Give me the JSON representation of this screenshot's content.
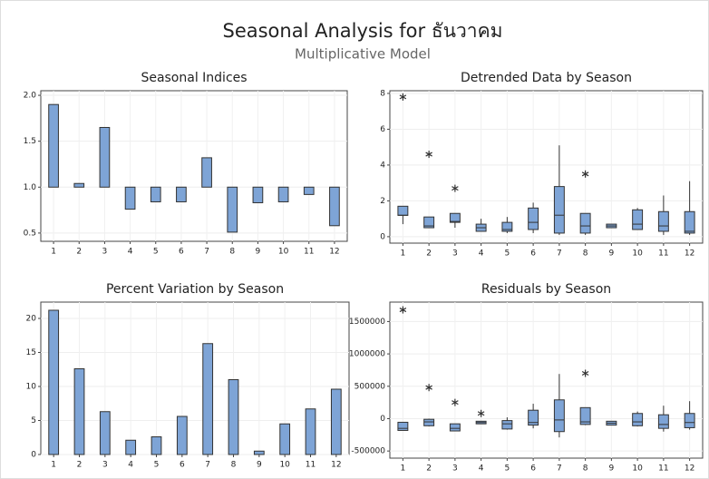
{
  "title": "Seasonal Analysis for ธันวาคม",
  "subtitle": "Multiplicative Model",
  "chart_data": [
    {
      "type": "bar",
      "title": "Seasonal Indices",
      "categories": [
        "1",
        "2",
        "3",
        "4",
        "5",
        "6",
        "7",
        "8",
        "9",
        "10",
        "11",
        "12"
      ],
      "values": [
        1.9,
        1.04,
        1.65,
        0.76,
        0.84,
        0.84,
        1.32,
        0.51,
        0.83,
        0.84,
        0.92,
        0.58
      ],
      "baseline": 1,
      "color": "#7ea4d6",
      "ylim": [
        0.41,
        2.05
      ],
      "yticks": [
        0.5,
        {
          "value": 1.0,
          "label": "1.0"
        },
        1.5,
        {
          "value": 2.0,
          "label": "2.0"
        }
      ],
      "grid": true
    },
    {
      "type": "box",
      "title": "Detrended Data by Season",
      "categories": [
        "1",
        "2",
        "3",
        "4",
        "5",
        "6",
        "7",
        "8",
        "9",
        "10",
        "11",
        "12"
      ],
      "boxes": [
        {
          "low": 0.7,
          "q1": 1.19,
          "median": 1.2,
          "q3": 1.7,
          "high": 1.7,
          "outliers": [
            7.8
          ]
        },
        {
          "low": 0.5,
          "q1": 0.5,
          "median": 0.6,
          "q3": 1.1,
          "high": 1.1,
          "outliers": [
            4.6
          ]
        },
        {
          "low": 0.5,
          "q1": 0.8,
          "median": 0.85,
          "q3": 1.3,
          "high": 1.3,
          "outliers": [
            2.7
          ]
        },
        {
          "low": 0.3,
          "q1": 0.3,
          "median": 0.5,
          "q3": 0.7,
          "high": 1.0,
          "outliers": []
        },
        {
          "low": 0.2,
          "q1": 0.3,
          "median": 0.4,
          "q3": 0.8,
          "high": 1.1,
          "outliers": []
        },
        {
          "low": 0.2,
          "q1": 0.4,
          "median": 0.8,
          "q3": 1.6,
          "high": 1.9,
          "outliers": []
        },
        {
          "low": 0.1,
          "q1": 0.2,
          "median": 1.2,
          "q3": 2.8,
          "high": 5.1,
          "outliers": []
        },
        {
          "low": 0.1,
          "q1": 0.2,
          "median": 0.6,
          "q3": 1.3,
          "high": 1.3,
          "outliers": [
            3.5
          ]
        },
        {
          "low": 0.5,
          "q1": 0.5,
          "median": 0.6,
          "q3": 0.7,
          "high": 0.7,
          "outliers": []
        },
        {
          "low": 0.4,
          "q1": 0.4,
          "median": 0.7,
          "q3": 1.5,
          "high": 1.6,
          "outliers": []
        },
        {
          "low": 0.1,
          "q1": 0.3,
          "median": 0.6,
          "q3": 1.4,
          "high": 2.3,
          "outliers": []
        },
        {
          "low": 0.1,
          "q1": 0.2,
          "median": 0.3,
          "q3": 1.4,
          "high": 3.1,
          "outliers": []
        }
      ],
      "color": "#7ea4d6",
      "ylim": [
        -0.36,
        8.15
      ],
      "yticks": [
        0,
        2,
        4,
        6,
        8
      ],
      "grid": true
    },
    {
      "type": "bar",
      "title": "Percent Variation by Season",
      "categories": [
        "1",
        "2",
        "3",
        "4",
        "5",
        "6",
        "7",
        "8",
        "9",
        "10",
        "11",
        "12"
      ],
      "values": [
        21.2,
        12.6,
        6.3,
        2.1,
        2.6,
        5.6,
        16.3,
        11.0,
        0.5,
        4.5,
        6.7,
        9.6
      ],
      "baseline": 0,
      "color": "#7ea4d6",
      "ylim": [
        0,
        22.4
      ],
      "yticks": [
        0,
        5,
        10,
        15,
        20
      ],
      "grid": true
    },
    {
      "type": "box",
      "title": "Residuals by Season",
      "categories": [
        "1",
        "2",
        "3",
        "4",
        "5",
        "6",
        "7",
        "8",
        "9",
        "10",
        "11",
        "12"
      ],
      "boxes": [
        {
          "low": -182000,
          "q1": -182000,
          "median": -150000,
          "q3": -56000,
          "high": -56000,
          "outliers": [
            1680000
          ]
        },
        {
          "low": -120000,
          "q1": -110000,
          "median": -50000,
          "q3": -10000,
          "high": 0,
          "outliers": [
            480000
          ]
        },
        {
          "low": -190000,
          "q1": -190000,
          "median": -150000,
          "q3": -80000,
          "high": -80000,
          "outliers": [
            250000
          ]
        },
        {
          "low": -80000,
          "q1": -80000,
          "median": -60000,
          "q3": -40000,
          "high": -40000,
          "outliers": [
            80000
          ]
        },
        {
          "low": -170000,
          "q1": -160000,
          "median": -80000,
          "q3": -30000,
          "high": 20000,
          "outliers": []
        },
        {
          "low": -150000,
          "q1": -100000,
          "median": -60000,
          "q3": 130000,
          "high": 230000,
          "outliers": []
        },
        {
          "low": -290000,
          "q1": -200000,
          "median": -20000,
          "q3": 290000,
          "high": 690000,
          "outliers": []
        },
        {
          "low": -100000,
          "q1": -90000,
          "median": -50000,
          "q3": 170000,
          "high": 170000,
          "outliers": [
            700000
          ]
        },
        {
          "low": -100000,
          "q1": -100000,
          "median": -70000,
          "q3": -40000,
          "high": -40000,
          "outliers": []
        },
        {
          "low": -120000,
          "q1": -110000,
          "median": -50000,
          "q3": 80000,
          "high": 110000,
          "outliers": []
        },
        {
          "low": -200000,
          "q1": -150000,
          "median": -90000,
          "q3": 60000,
          "high": 200000,
          "outliers": []
        },
        {
          "low": -170000,
          "q1": -140000,
          "median": -60000,
          "q3": 80000,
          "high": 270000,
          "outliers": []
        }
      ],
      "color": "#7ea4d6",
      "ylim": [
        -610000,
        1800000
      ],
      "yticks": [
        -500000,
        0,
        500000,
        1000000,
        1500000
      ],
      "grid": true
    }
  ]
}
